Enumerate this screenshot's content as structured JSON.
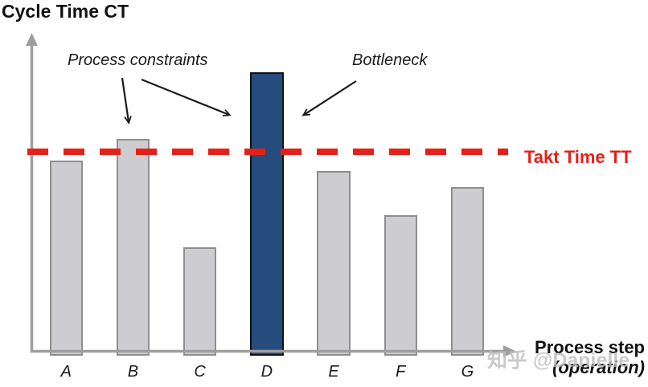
{
  "title": "Cycle Time CT",
  "annotations": {
    "process_constraints": "Process constraints",
    "bottleneck": "Bottleneck"
  },
  "takt_line": {
    "label": "Takt Time TT",
    "color": "#E32119",
    "style": "dashed"
  },
  "x_axis": {
    "label_line1": "Process step",
    "label_line2": "(operation)"
  },
  "watermark": "知乎 @Danielle",
  "colors": {
    "bar_fill": "#CDCDD1",
    "bar_border": "#8E8E8E",
    "bottleneck_fill": "#254C7C",
    "bottleneck_border": "#121212",
    "axis_gray": "#9E9E9E",
    "takt_red": "#E32119"
  },
  "chart_data": {
    "type": "bar",
    "title": "Cycle Time CT",
    "ylabel": "Cycle Time CT",
    "xlabel": "Process step (operation)",
    "categories": [
      "A",
      "B",
      "C",
      "D",
      "E",
      "F",
      "G"
    ],
    "values": [
      0.95,
      1.06,
      0.52,
      1.39,
      0.9,
      0.68,
      0.82
    ],
    "value_unit": "cycle time relative to Takt Time (chart shows no numeric axis)",
    "reference_line": {
      "name": "Takt Time TT",
      "value": 1.0,
      "style": "dashed",
      "color": "#E32119",
      "label_position": "right"
    },
    "highlight": {
      "category": "D",
      "label": "Bottleneck",
      "color": "#254C7C"
    },
    "above_takt_categories": [
      "B",
      "D"
    ],
    "annotations": [
      {
        "text": "Process constraints",
        "points_to": [
          "B",
          "D"
        ]
      },
      {
        "text": "Bottleneck",
        "points_to": [
          "D"
        ]
      }
    ],
    "legend": "none",
    "grid": false,
    "axis_arrows": true
  }
}
